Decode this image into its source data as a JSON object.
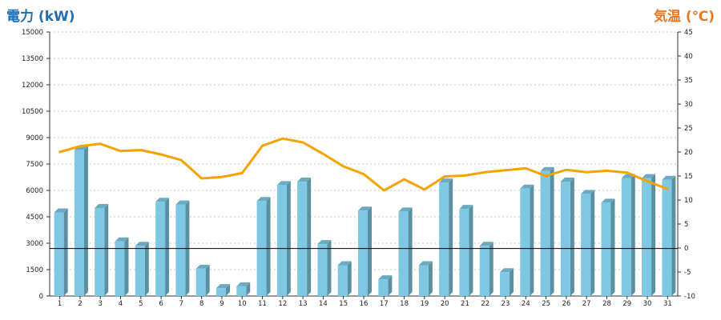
{
  "chart_data": {
    "type": "bar",
    "left_axis": {
      "label": "電力 (kW)",
      "ylim": [
        0,
        15000
      ],
      "ticks": [
        0,
        1500,
        3000,
        4500,
        6000,
        7500,
        9000,
        10500,
        12000,
        13500,
        15000
      ]
    },
    "right_axis": {
      "label": "気温 (℃)",
      "ylim": [
        -10,
        45
      ],
      "ticks": [
        -10,
        -5,
        0,
        5,
        10,
        15,
        20,
        25,
        30,
        35,
        40,
        45
      ]
    },
    "categories": [
      "1",
      "2",
      "3",
      "4",
      "5",
      "6",
      "7",
      "8",
      "9",
      "10",
      "11",
      "12",
      "13",
      "14",
      "15",
      "16",
      "17",
      "18",
      "19",
      "20",
      "21",
      "22",
      "23",
      "24",
      "25",
      "26",
      "27",
      "28",
      "29",
      "30",
      "31"
    ],
    "series": [
      {
        "kind": "bar",
        "axis": "left",
        "color": "#7ec8e3",
        "values": [
          4750,
          8300,
          5000,
          3100,
          2850,
          5350,
          5200,
          1550,
          450,
          550,
          5400,
          6300,
          6500,
          2950,
          1750,
          4850,
          950,
          4800,
          1750,
          6450,
          4950,
          2850,
          1350,
          6100,
          7100,
          6500,
          5800,
          5300,
          6700,
          6700,
          6600
        ]
      },
      {
        "kind": "line",
        "axis": "right",
        "color": "#f5a300",
        "values": [
          20.0,
          21.2,
          21.7,
          20.2,
          20.4,
          19.5,
          18.3,
          14.5,
          14.8,
          15.6,
          21.3,
          22.8,
          22.0,
          19.6,
          17.0,
          15.4,
          12.0,
          14.3,
          12.2,
          14.9,
          15.1,
          15.8,
          16.2,
          16.6,
          15.0,
          16.3,
          15.8,
          16.1,
          15.7,
          13.9,
          12.3
        ]
      }
    ],
    "reference_line": {
      "axis": "left",
      "value": 2700,
      "color": "#000000"
    },
    "grid": true
  }
}
